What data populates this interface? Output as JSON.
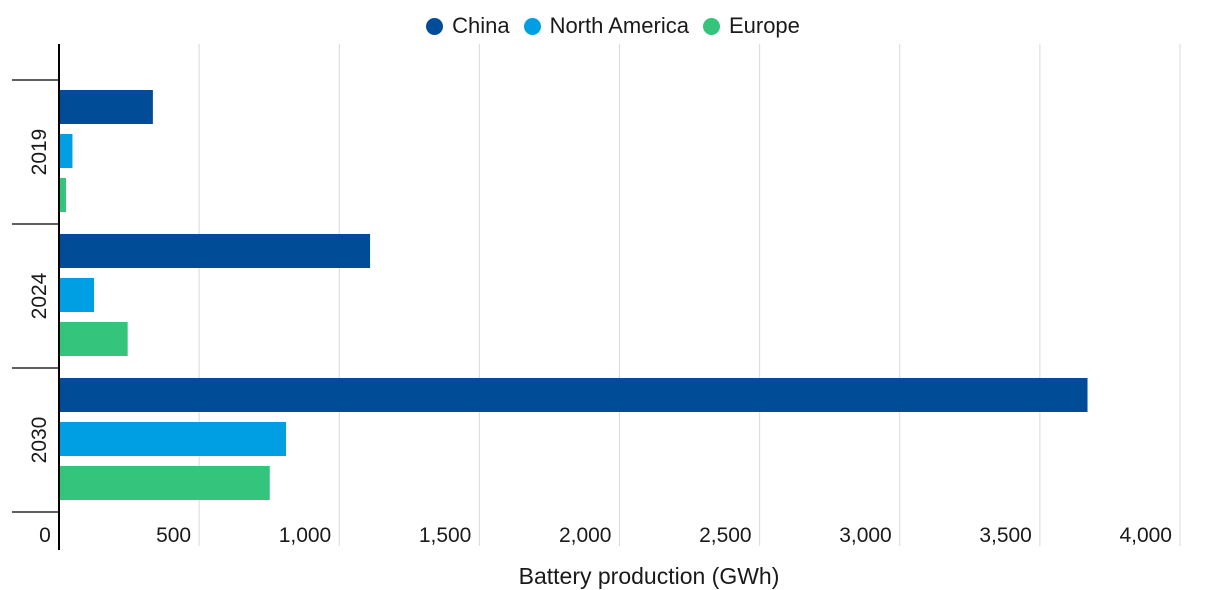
{
  "chart_data": {
    "type": "bar",
    "orientation": "horizontal",
    "title": "",
    "xlabel": "Battery production (GWh)",
    "ylabel": "",
    "xlim": [
      0,
      4000
    ],
    "xticks": [
      0,
      500,
      1000,
      1500,
      2000,
      2500,
      3000,
      3500,
      4000
    ],
    "xtick_labels": [
      "0",
      "500",
      "1,000",
      "1,500",
      "2,000",
      "2,500",
      "3,000",
      "3,500",
      "4,000"
    ],
    "categories": [
      "2019",
      "2024",
      "2030"
    ],
    "series": [
      {
        "name": "China",
        "color": "#004c97",
        "values": [
          335,
          1110,
          3670
        ]
      },
      {
        "name": "North America",
        "color": "#009fe3",
        "values": [
          48,
          125,
          810
        ]
      },
      {
        "name": "Europe",
        "color": "#35c47c",
        "values": [
          25,
          245,
          752
        ]
      }
    ],
    "grid": "vertical",
    "legend_position": "top-center"
  }
}
